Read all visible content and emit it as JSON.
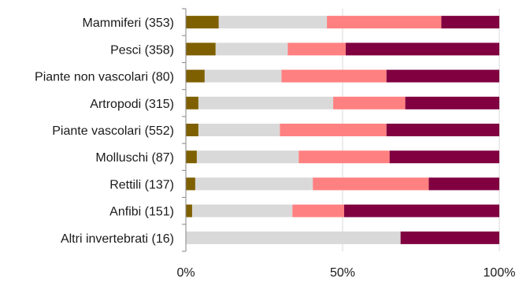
{
  "chart_data": {
    "type": "bar",
    "orientation": "horizontal",
    "stacked": "percent",
    "categories": [
      "Mammiferi (353)",
      "Pesci (358)",
      "Piante non vascolari (80)",
      "Artropodi (315)",
      "Piante vascolari (552)",
      "Molluschi (87)",
      "Rettili (137)",
      "Anfibi (151)",
      "Altri invertebrati (16)"
    ],
    "series": [
      {
        "color": "#7f6000",
        "values": [
          10.5,
          9.5,
          6.0,
          4.0,
          4.0,
          3.5,
          3.0,
          2.0,
          0.0
        ]
      },
      {
        "color": "#d9d9d9",
        "values": [
          34.5,
          23.0,
          24.5,
          43.0,
          26.0,
          32.5,
          37.5,
          32.0,
          68.5
        ]
      },
      {
        "color": "#ff8080",
        "values": [
          36.5,
          18.5,
          33.5,
          23.0,
          34.0,
          29.0,
          37.0,
          16.5,
          0.0
        ]
      },
      {
        "color": "#800040",
        "values": [
          18.5,
          49.0,
          36.0,
          30.0,
          36.0,
          35.0,
          22.5,
          49.5,
          31.5
        ]
      }
    ],
    "xlim": [
      0,
      100
    ],
    "x_ticks": [
      "0%",
      "50%",
      "100%"
    ],
    "x_tick_values": [
      0,
      50,
      100
    ],
    "grid": true,
    "legend": "none"
  }
}
